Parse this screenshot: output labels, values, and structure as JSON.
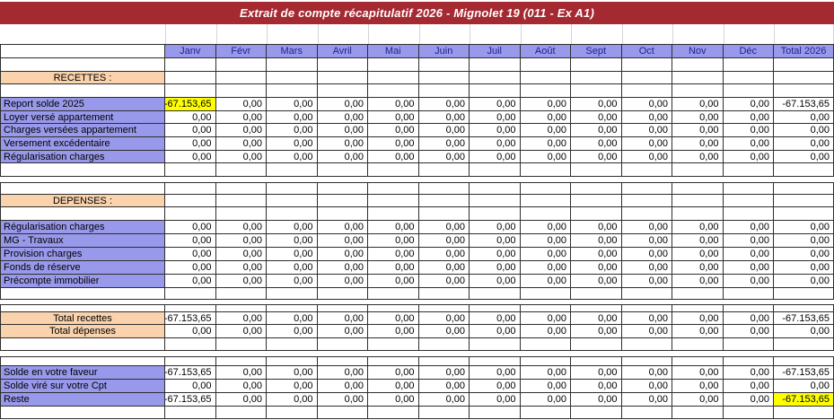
{
  "title": "Extrait de compte récapitulatif 2026 - Mignolet 19 (011 - Ex A1)",
  "colors": {
    "title_bg": "#A42931",
    "title_text": "#FFFFFF",
    "header_bg": "#9999EC",
    "header_text": "#1F1F8F",
    "row_label_bg": "#9999EC",
    "section_bg": "#FAD3AD",
    "highlight": "#FFFF00"
  },
  "table": {
    "columns": [
      "Janv",
      "Févr",
      "Mars",
      "Avril",
      "Mai",
      "Juin",
      "Juil",
      "Août",
      "Sept",
      "Oct",
      "Nov",
      "Déc",
      "Total 2026"
    ],
    "rows": [
      {
        "kind": "empty"
      },
      {
        "kind": "section",
        "label": "RECETTES :"
      },
      {
        "kind": "empty"
      },
      {
        "kind": "data",
        "label": "Report solde 2025",
        "style": "purple",
        "hl": [
          0
        ],
        "values": [
          "-67.153,65",
          "0,00",
          "0,00",
          "0,00",
          "0,00",
          "0,00",
          "0,00",
          "0,00",
          "0,00",
          "0,00",
          "0,00",
          "0,00",
          "-67.153,65"
        ]
      },
      {
        "kind": "data",
        "label": "Loyer versé appartement",
        "style": "purple",
        "hl": [],
        "values": [
          "0,00",
          "0,00",
          "0,00",
          "0,00",
          "0,00",
          "0,00",
          "0,00",
          "0,00",
          "0,00",
          "0,00",
          "0,00",
          "0,00",
          "0,00"
        ]
      },
      {
        "kind": "data",
        "label": "Charges versées appartement",
        "style": "purple",
        "hl": [],
        "values": [
          "0,00",
          "0,00",
          "0,00",
          "0,00",
          "0,00",
          "0,00",
          "0,00",
          "0,00",
          "0,00",
          "0,00",
          "0,00",
          "0,00",
          "0,00"
        ]
      },
      {
        "kind": "data",
        "label": "Versement excédentaire",
        "style": "purple",
        "hl": [],
        "values": [
          "0,00",
          "0,00",
          "0,00",
          "0,00",
          "0,00",
          "0,00",
          "0,00",
          "0,00",
          "0,00",
          "0,00",
          "0,00",
          "0,00",
          "0,00"
        ]
      },
      {
        "kind": "data",
        "label": "Régularisation charges",
        "style": "purple",
        "hl": [],
        "values": [
          "0,00",
          "0,00",
          "0,00",
          "0,00",
          "0,00",
          "0,00",
          "0,00",
          "0,00",
          "0,00",
          "0,00",
          "0,00",
          "0,00",
          "0,00"
        ]
      },
      {
        "kind": "empty"
      },
      {
        "kind": "spacer"
      },
      {
        "kind": "empty"
      },
      {
        "kind": "section",
        "label": "DEPENSES :"
      },
      {
        "kind": "empty"
      },
      {
        "kind": "data",
        "label": "Régularisation charges",
        "style": "purple",
        "hl": [],
        "values": [
          "0,00",
          "0,00",
          "0,00",
          "0,00",
          "0,00",
          "0,00",
          "0,00",
          "0,00",
          "0,00",
          "0,00",
          "0,00",
          "0,00",
          "0,00"
        ]
      },
      {
        "kind": "data",
        "label": "MG - Travaux",
        "style": "purple",
        "hl": [],
        "values": [
          "0,00",
          "0,00",
          "0,00",
          "0,00",
          "0,00",
          "0,00",
          "0,00",
          "0,00",
          "0,00",
          "0,00",
          "0,00",
          "0,00",
          "0,00"
        ]
      },
      {
        "kind": "data",
        "label": "Provision charges",
        "style": "purple",
        "hl": [],
        "values": [
          "0,00",
          "0,00",
          "0,00",
          "0,00",
          "0,00",
          "0,00",
          "0,00",
          "0,00",
          "0,00",
          "0,00",
          "0,00",
          "0,00",
          "0,00"
        ]
      },
      {
        "kind": "data",
        "label": "Fonds de réserve",
        "style": "purple",
        "hl": [],
        "values": [
          "0,00",
          "0,00",
          "0,00",
          "0,00",
          "0,00",
          "0,00",
          "0,00",
          "0,00",
          "0,00",
          "0,00",
          "0,00",
          "0,00",
          "0,00"
        ]
      },
      {
        "kind": "data",
        "label": "Précompte immobilier",
        "style": "purple",
        "hl": [],
        "values": [
          "0,00",
          "0,00",
          "0,00",
          "0,00",
          "0,00",
          "0,00",
          "0,00",
          "0,00",
          "0,00",
          "0,00",
          "0,00",
          "0,00",
          "0,00"
        ]
      },
      {
        "kind": "empty"
      },
      {
        "kind": "spacer"
      },
      {
        "kind": "empty"
      },
      {
        "kind": "data",
        "label": "Total recettes",
        "style": "peach",
        "align": "center",
        "hl": [],
        "values": [
          "-67.153,65",
          "0,00",
          "0,00",
          "0,00",
          "0,00",
          "0,00",
          "0,00",
          "0,00",
          "0,00",
          "0,00",
          "0,00",
          "0,00",
          "-67.153,65"
        ]
      },
      {
        "kind": "data",
        "label": "Total dépenses",
        "style": "peach",
        "align": "center",
        "hl": [],
        "values": [
          "0,00",
          "0,00",
          "0,00",
          "0,00",
          "0,00",
          "0,00",
          "0,00",
          "0,00",
          "0,00",
          "0,00",
          "0,00",
          "0,00",
          "0,00"
        ]
      },
      {
        "kind": "empty"
      },
      {
        "kind": "spacer"
      },
      {
        "kind": "empty"
      },
      {
        "kind": "data",
        "label": "Solde en votre faveur",
        "style": "purple",
        "hl": [],
        "values": [
          "-67.153,65",
          "0,00",
          "0,00",
          "0,00",
          "0,00",
          "0,00",
          "0,00",
          "0,00",
          "0,00",
          "0,00",
          "0,00",
          "0,00",
          "-67.153,65"
        ]
      },
      {
        "kind": "data",
        "label": "Solde viré sur votre Cpt",
        "style": "purple",
        "hl": [],
        "values": [
          "0,00",
          "0,00",
          "0,00",
          "0,00",
          "0,00",
          "0,00",
          "0,00",
          "0,00",
          "0,00",
          "0,00",
          "0,00",
          "0,00",
          "0,00"
        ]
      },
      {
        "kind": "data",
        "label": "Reste",
        "style": "purple",
        "hl": [
          12
        ],
        "values": [
          "-67.153,65",
          "0,00",
          "0,00",
          "0,00",
          "0,00",
          "0,00",
          "0,00",
          "0,00",
          "0,00",
          "0,00",
          "0,00",
          "0,00",
          "-67.153,65"
        ]
      },
      {
        "kind": "empty"
      }
    ]
  }
}
